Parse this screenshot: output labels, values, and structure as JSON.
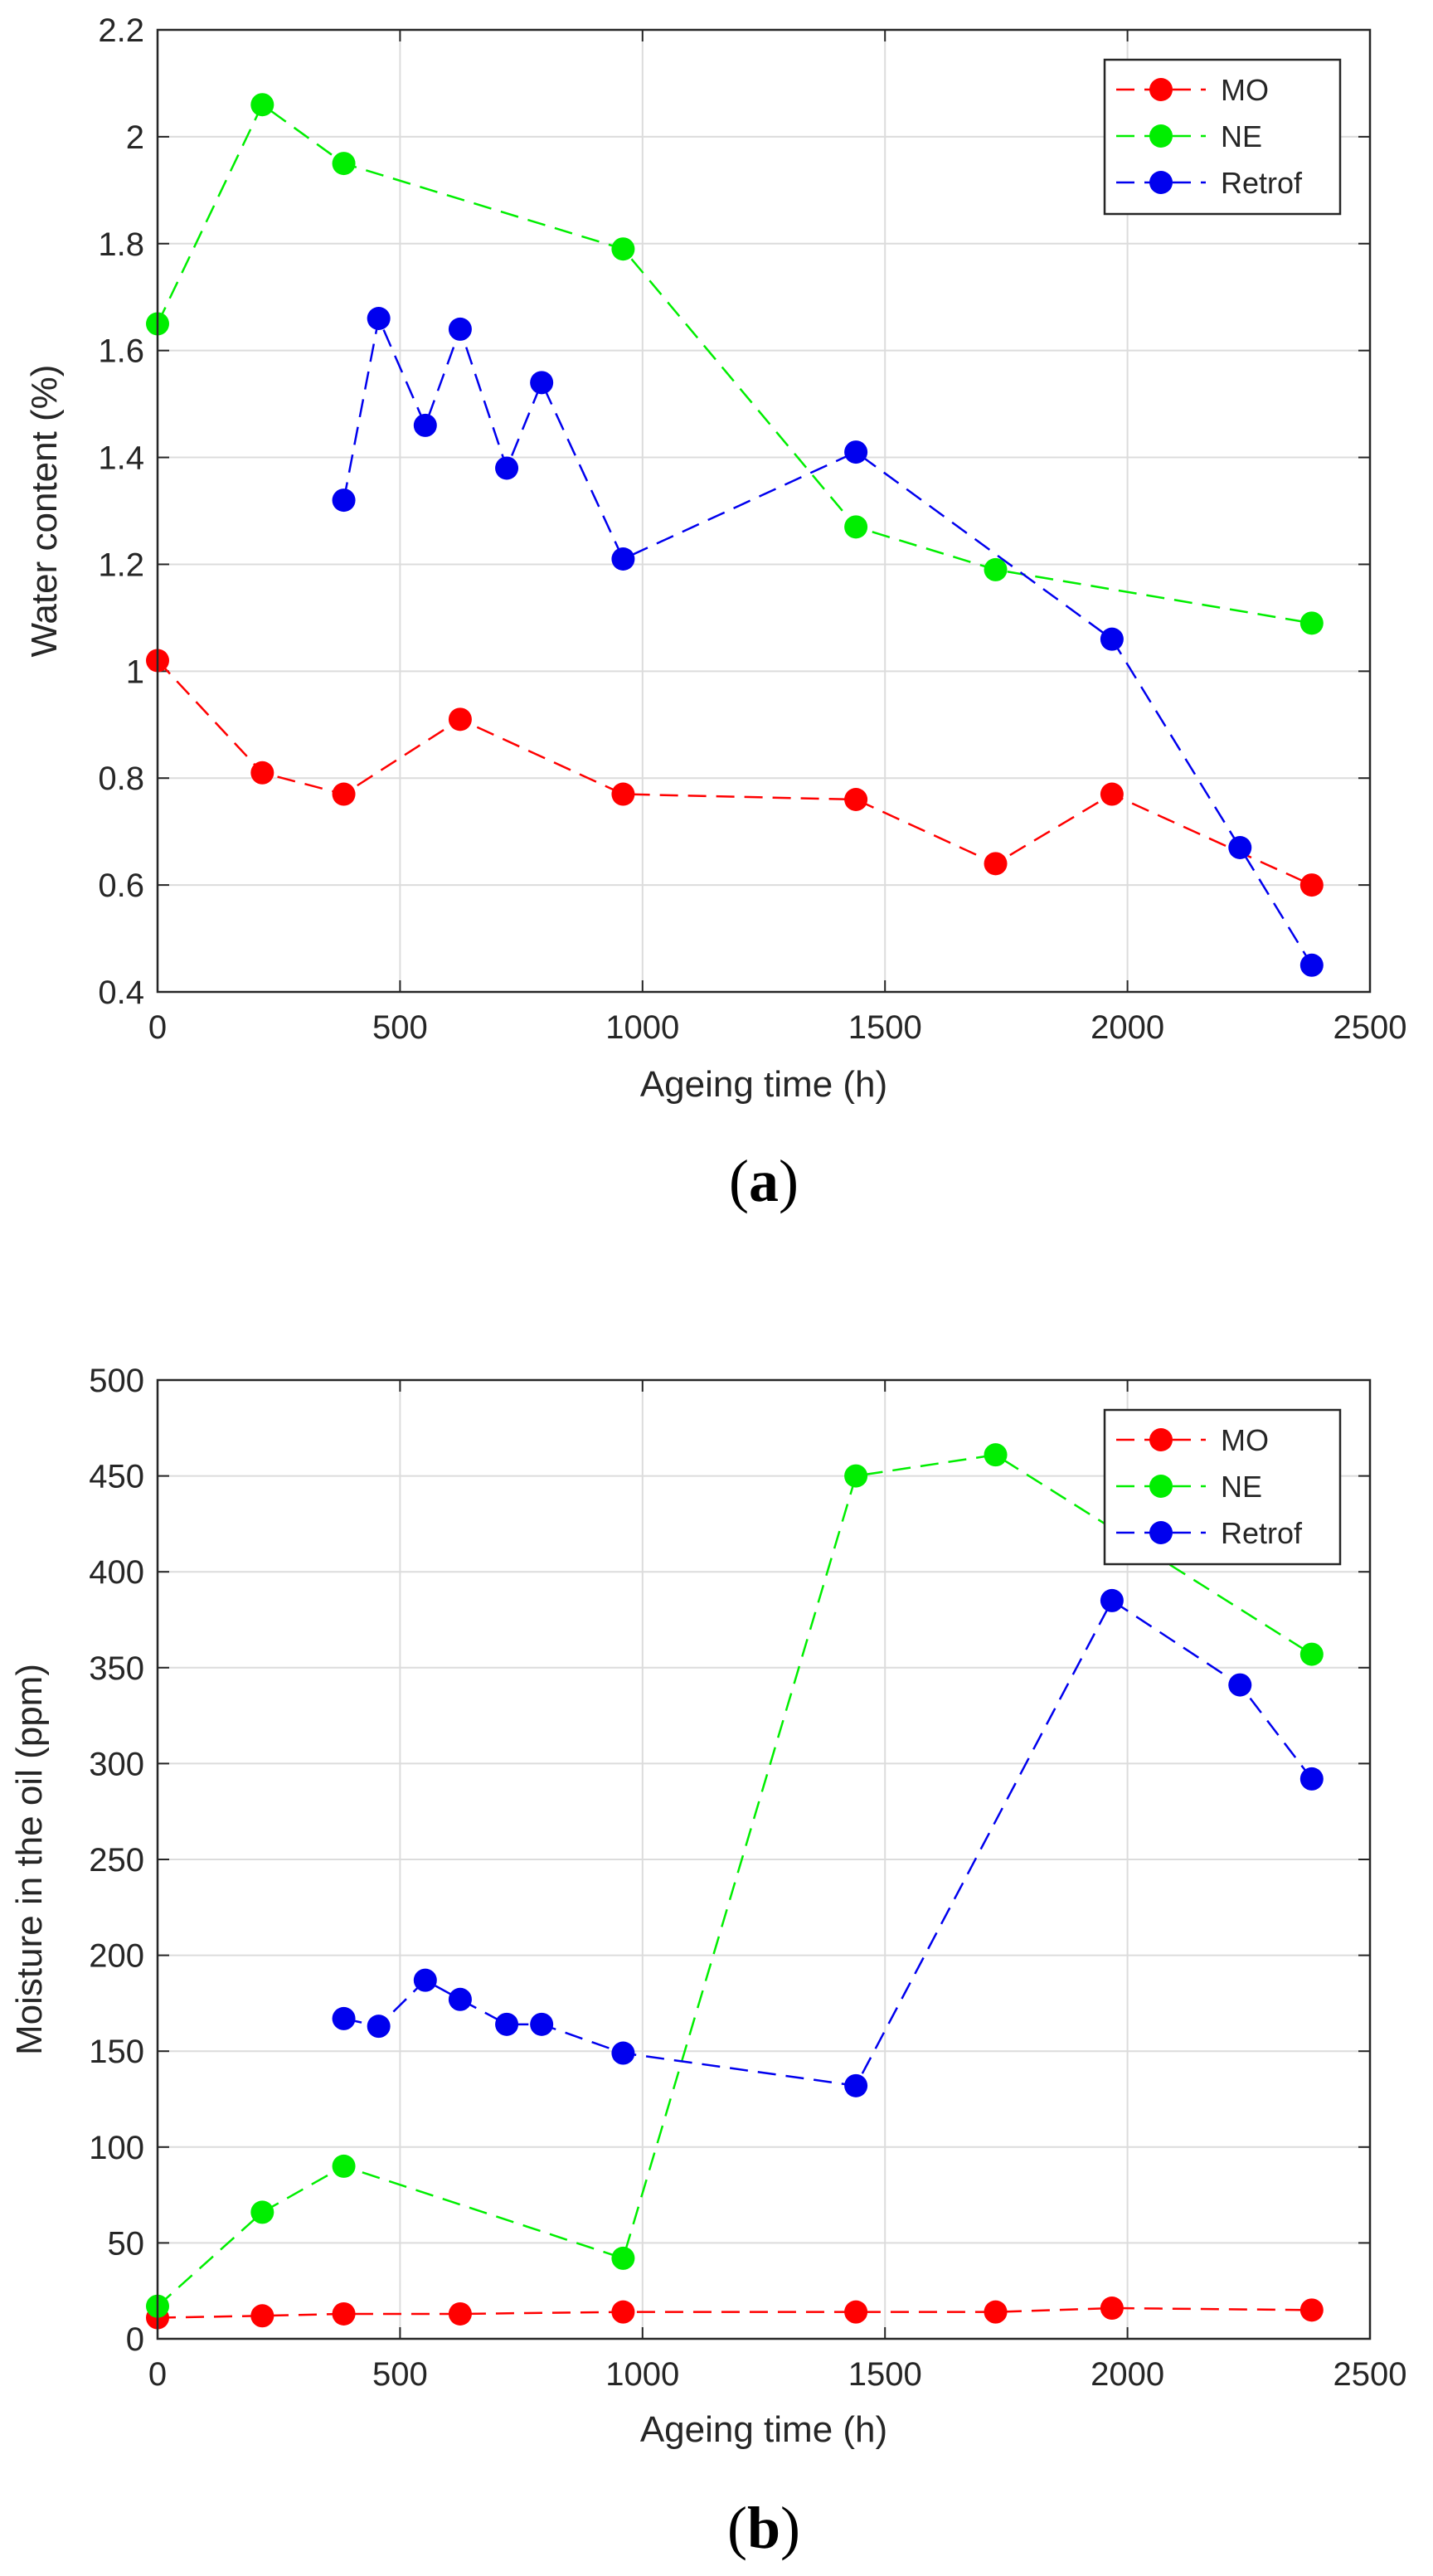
{
  "chart_data": [
    {
      "type": "line",
      "panel_label": "(a)",
      "panel_label_open": "(",
      "panel_label_letter": "a",
      "panel_label_close": ")",
      "title": "",
      "xlabel": "Ageing time (h)",
      "ylabel": "Water content (%)",
      "xlim": [
        0,
        2500
      ],
      "ylim": [
        0.4,
        2.2
      ],
      "xticks": [
        0,
        500,
        1000,
        1500,
        2000,
        2500
      ],
      "yticks": [
        0.4,
        0.6,
        0.8,
        1,
        1.2,
        1.4,
        1.6,
        1.8,
        2,
        2.2
      ],
      "xtick_labels": [
        "0",
        "500",
        "1000",
        "1500",
        "2000",
        "2500"
      ],
      "ytick_labels": [
        "0.4",
        "0.6",
        "0.8",
        "1",
        "1.2",
        "1.4",
        "1.6",
        "1.8",
        "2",
        "2.2"
      ],
      "grid": true,
      "legend_position": "top-right",
      "series": [
        {
          "name": "MO",
          "color": "#ff0000",
          "x": [
            0,
            216,
            384,
            624,
            960,
            1440,
            1728,
            1968,
            2380
          ],
          "y": [
            1.02,
            0.81,
            0.77,
            0.91,
            0.77,
            0.76,
            0.64,
            0.77,
            0.6
          ]
        },
        {
          "name": "NE",
          "color": "#00ee00",
          "x": [
            0,
            216,
            384,
            960,
            1440,
            1728,
            2380
          ],
          "y": [
            1.65,
            2.06,
            1.95,
            1.79,
            1.27,
            1.19,
            1.09
          ]
        },
        {
          "name": "Retrof",
          "color": "#0000ee",
          "x": [
            384,
            456,
            552,
            624,
            720,
            792,
            960,
            1440,
            1968,
            2232,
            2380
          ],
          "y": [
            1.32,
            1.66,
            1.46,
            1.64,
            1.38,
            1.54,
            1.21,
            1.41,
            1.06,
            0.67,
            0.45
          ]
        }
      ]
    },
    {
      "type": "line",
      "panel_label": "(b)",
      "panel_label_open": "(",
      "panel_label_letter": "b",
      "panel_label_close": ")",
      "title": "",
      "xlabel": "Ageing time (h)",
      "ylabel": "Moisture in the oil (ppm)",
      "xlim": [
        0,
        2500
      ],
      "ylim": [
        0,
        500
      ],
      "xticks": [
        0,
        500,
        1000,
        1500,
        2000,
        2500
      ],
      "yticks": [
        0,
        50,
        100,
        150,
        200,
        250,
        300,
        350,
        400,
        450,
        500
      ],
      "xtick_labels": [
        "0",
        "500",
        "1000",
        "1500",
        "2000",
        "2500"
      ],
      "ytick_labels": [
        "0",
        "50",
        "100",
        "150",
        "200",
        "250",
        "300",
        "350",
        "400",
        "450",
        "500"
      ],
      "grid": true,
      "legend_position": "top-right",
      "series": [
        {
          "name": "MO",
          "color": "#ff0000",
          "x": [
            0,
            216,
            384,
            624,
            960,
            1440,
            1728,
            1968,
            2380
          ],
          "y": [
            11,
            12,
            13,
            13,
            14,
            14,
            14,
            16,
            15
          ]
        },
        {
          "name": "NE",
          "color": "#00ee00",
          "x": [
            0,
            216,
            384,
            960,
            1440,
            1728,
            2380
          ],
          "y": [
            17,
            66,
            90,
            42,
            450,
            461,
            357
          ]
        },
        {
          "name": "Retrof",
          "color": "#0000ee",
          "x": [
            384,
            456,
            552,
            624,
            720,
            792,
            960,
            1440,
            1968,
            2232,
            2380
          ],
          "y": [
            167,
            163,
            187,
            177,
            164,
            164,
            149,
            132,
            385,
            341,
            292
          ]
        }
      ]
    }
  ]
}
